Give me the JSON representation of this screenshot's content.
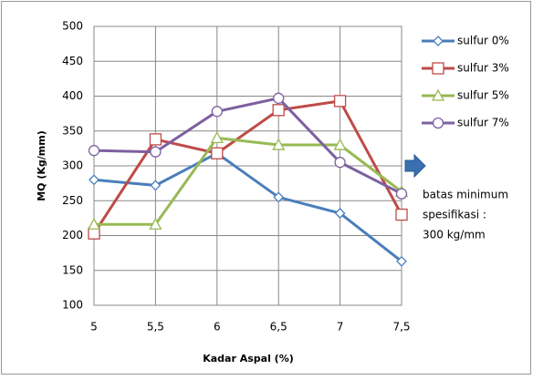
{
  "chart_data": {
    "type": "line",
    "x": [
      5,
      5.5,
      6,
      6.5,
      7,
      7.5
    ],
    "xlim": [
      5,
      7.5
    ],
    "xticks": [
      5,
      {
        "value": 5.5,
        "label": "5,5"
      },
      6,
      {
        "value": 6.5,
        "label": "6,5"
      },
      7,
      {
        "value": 7.5,
        "label": "7,5"
      }
    ],
    "ylim": [
      100,
      500
    ],
    "yticks": [
      100,
      150,
      200,
      250,
      300,
      350,
      400,
      450,
      500
    ],
    "grid": true,
    "x_label": "Kadar Aspal (%)",
    "y_label": "MQ (Kg/mm)",
    "legend": "right",
    "series": [
      {
        "name": "sulfur 0%",
        "color": "#4a7ebb",
        "marker": "diamond",
        "values": [
          280,
          272,
          318,
          255,
          232,
          163
        ]
      },
      {
        "name": "sulfur 3%",
        "color": "#be4b48",
        "marker": "square",
        "values": [
          203,
          338,
          318,
          380,
          393,
          230
        ]
      },
      {
        "name": "sulfur 5%",
        "color": "#98b954",
        "marker": "triangle",
        "values": [
          216,
          216,
          340,
          330,
          330,
          263
        ]
      },
      {
        "name": "sulfur 7%",
        "color": "#7d60a0",
        "marker": "circle",
        "values": [
          322,
          320,
          378,
          397,
          305,
          260
        ]
      }
    ],
    "annotation": {
      "lines": [
        "batas minimum",
        "spesifikasi :",
        "300 kg/mm"
      ],
      "arrow_color": "#3a6fb0"
    }
  }
}
